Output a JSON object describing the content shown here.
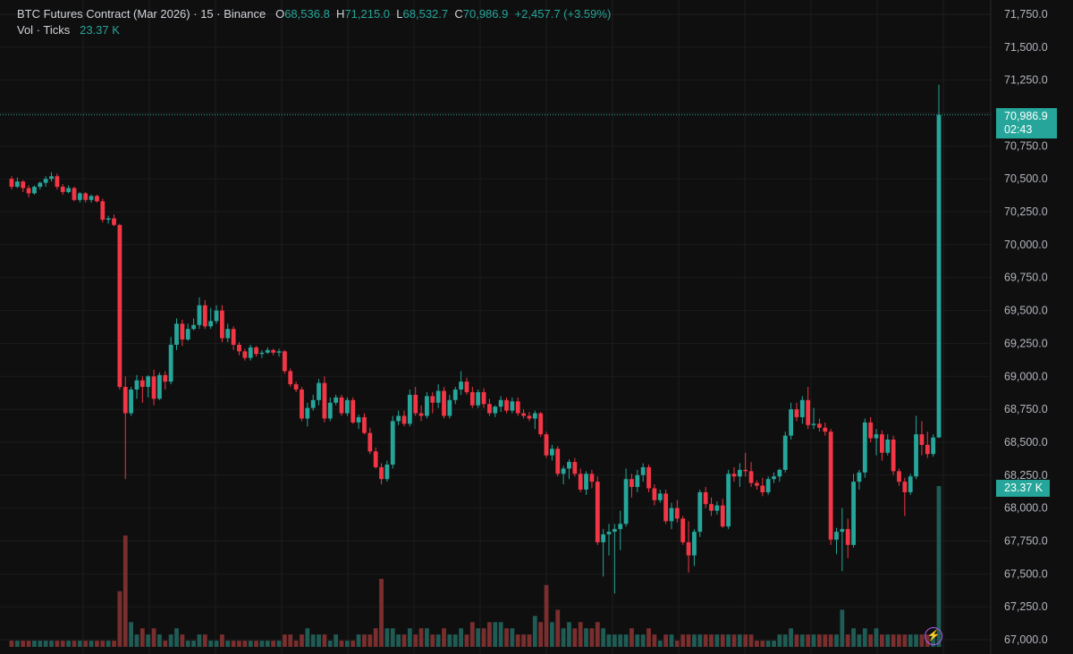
{
  "legend": {
    "symbol": "BTC Futures Contract (Mar 2026)",
    "interval": "15",
    "exchange": "Binance",
    "open_label": "O",
    "open": "68,536.8",
    "high_label": "H",
    "high": "71,215.0",
    "low_label": "L",
    "low": "68,532.7",
    "close_label": "C",
    "close": "70,986.9",
    "change": "+2,457.7 (+3.59%)",
    "vol_label": "Vol · Ticks",
    "vol_value": "23.37 K"
  },
  "price_tag": {
    "price": "70,986.9",
    "countdown": "02:43"
  },
  "volume_tag": {
    "value": "23.37 K"
  },
  "bolt_icon": "⚡",
  "colors": {
    "up": "#26a69a",
    "down": "#f23645",
    "up_vol": "#1f5c55",
    "down_vol": "#7a2e2e",
    "accent": "#b15cf2"
  },
  "chart_data": {
    "type": "candlestick",
    "y_axis_ticks": [
      "67,000.0",
      "67,250.0",
      "67,500.0",
      "67,750.0",
      "68,000.0",
      "68,250.0",
      "68,500.0",
      "68,750.0",
      "69,000.0",
      "69,250.0",
      "69,500.0",
      "69,750.0",
      "70,000.0",
      "70,250.0",
      "70,500.0",
      "70,750.0",
      "71,000.0",
      "71,250.0",
      "71,500.0",
      "71,750.0"
    ],
    "ylim": [
      67000,
      71750
    ],
    "last_price": 70986.9,
    "candles": [
      [
        70500,
        70520,
        70420,
        70440,
        1
      ],
      [
        70440,
        70510,
        70430,
        70480,
        1
      ],
      [
        70480,
        70490,
        70400,
        70430,
        1
      ],
      [
        70430,
        70450,
        70360,
        70390,
        1
      ],
      [
        70390,
        70450,
        70380,
        70440,
        1
      ],
      [
        70440,
        70480,
        70420,
        70470,
        1
      ],
      [
        70470,
        70520,
        70440,
        70500,
        1
      ],
      [
        70500,
        70550,
        70480,
        70520,
        1
      ],
      [
        70520,
        70540,
        70420,
        70440,
        1
      ],
      [
        70440,
        70460,
        70380,
        70400,
        1
      ],
      [
        70400,
        70450,
        70390,
        70430,
        1
      ],
      [
        70430,
        70440,
        70330,
        70340,
        1
      ],
      [
        70340,
        70400,
        70320,
        70390,
        1
      ],
      [
        70390,
        70400,
        70320,
        70340,
        1
      ],
      [
        70340,
        70380,
        70320,
        70370,
        1
      ],
      [
        70370,
        70380,
        70320,
        70330,
        1
      ],
      [
        70330,
        70350,
        70170,
        70190,
        1
      ],
      [
        70190,
        70220,
        70160,
        70200,
        1
      ],
      [
        70200,
        70230,
        70140,
        70150,
        1
      ],
      [
        70150,
        70160,
        68900,
        68920,
        9
      ],
      [
        68920,
        69000,
        68220,
        68720,
        18
      ],
      [
        68720,
        68920,
        68700,
        68900,
        4
      ],
      [
        68900,
        69010,
        68830,
        68970,
        2
      ],
      [
        68970,
        69000,
        68800,
        68920,
        3
      ],
      [
        68920,
        69010,
        68840,
        69000,
        2
      ],
      [
        69000,
        69050,
        68780,
        68830,
        3
      ],
      [
        68830,
        69030,
        68820,
        69010,
        2
      ],
      [
        69010,
        69040,
        68900,
        68960,
        1
      ],
      [
        68960,
        69300,
        68940,
        69240,
        2
      ],
      [
        69240,
        69440,
        69200,
        69400,
        3
      ],
      [
        69400,
        69430,
        69230,
        69280,
        2
      ],
      [
        69280,
        69400,
        69270,
        69360,
        1
      ],
      [
        69360,
        69440,
        69350,
        69390,
        1
      ],
      [
        69390,
        69600,
        69360,
        69540,
        2
      ],
      [
        69540,
        69580,
        69360,
        69380,
        2
      ],
      [
        69380,
        69520,
        69360,
        69420,
        1
      ],
      [
        69420,
        69540,
        69400,
        69500,
        1
      ],
      [
        69500,
        69540,
        69260,
        69290,
        2
      ],
      [
        69290,
        69400,
        69260,
        69360,
        1
      ],
      [
        69360,
        69380,
        69200,
        69240,
        1
      ],
      [
        69240,
        69260,
        69160,
        69190,
        1
      ],
      [
        69190,
        69210,
        69120,
        69140,
        1
      ],
      [
        69140,
        69240,
        69120,
        69220,
        1
      ],
      [
        69220,
        69230,
        69150,
        69170,
        1
      ],
      [
        69170,
        69200,
        69140,
        69180,
        1
      ],
      [
        69180,
        69220,
        69170,
        69200,
        1
      ],
      [
        69200,
        69210,
        69160,
        69180,
        1
      ],
      [
        69180,
        69210,
        69150,
        69190,
        1
      ],
      [
        69190,
        69200,
        69020,
        69040,
        2
      ],
      [
        69040,
        69060,
        68920,
        68940,
        2
      ],
      [
        68940,
        68960,
        68880,
        68900,
        1
      ],
      [
        68900,
        68920,
        68660,
        68680,
        2
      ],
      [
        68680,
        68800,
        68620,
        68760,
        3
      ],
      [
        68760,
        68860,
        68740,
        68820,
        2
      ],
      [
        68820,
        68980,
        68780,
        68950,
        2
      ],
      [
        68950,
        69000,
        68650,
        68680,
        2
      ],
      [
        68680,
        68840,
        68660,
        68800,
        1
      ],
      [
        68800,
        68860,
        68780,
        68840,
        2
      ],
      [
        68840,
        68860,
        68700,
        68720,
        1
      ],
      [
        68720,
        68840,
        68700,
        68820,
        1
      ],
      [
        68820,
        68840,
        68640,
        68650,
        1
      ],
      [
        68650,
        68710,
        68600,
        68690,
        2
      ],
      [
        68690,
        68720,
        68560,
        68570,
        2
      ],
      [
        68570,
        68610,
        68410,
        68430,
        2
      ],
      [
        68430,
        68460,
        68300,
        68310,
        3
      ],
      [
        68310,
        68340,
        68180,
        68220,
        11
      ],
      [
        68220,
        68360,
        68200,
        68330,
        3
      ],
      [
        68330,
        68700,
        68300,
        68660,
        3
      ],
      [
        68660,
        68740,
        68630,
        68700,
        2
      ],
      [
        68700,
        68740,
        68620,
        68640,
        2
      ],
      [
        68640,
        68900,
        68620,
        68860,
        3
      ],
      [
        68860,
        68920,
        68700,
        68720,
        2
      ],
      [
        68720,
        68780,
        68660,
        68700,
        3
      ],
      [
        68700,
        68880,
        68680,
        68850,
        3
      ],
      [
        68850,
        68880,
        68720,
        68800,
        2
      ],
      [
        68800,
        68940,
        68760,
        68890,
        2
      ],
      [
        68890,
        68920,
        68680,
        68700,
        3
      ],
      [
        68700,
        68860,
        68680,
        68820,
        2
      ],
      [
        68820,
        68920,
        68790,
        68900,
        2
      ],
      [
        68900,
        69040,
        68860,
        68960,
        3
      ],
      [
        68960,
        68990,
        68860,
        68880,
        2
      ],
      [
        68880,
        68920,
        68760,
        68780,
        4
      ],
      [
        68780,
        68900,
        68760,
        68880,
        3
      ],
      [
        68880,
        68910,
        68760,
        68790,
        3
      ],
      [
        68790,
        68830,
        68700,
        68720,
        4
      ],
      [
        68720,
        68780,
        68690,
        68770,
        4
      ],
      [
        68770,
        68850,
        68730,
        68820,
        4
      ],
      [
        68820,
        68840,
        68720,
        68740,
        3
      ],
      [
        68740,
        68840,
        68720,
        68810,
        3
      ],
      [
        68810,
        68840,
        68700,
        68720,
        2
      ],
      [
        68720,
        68750,
        68680,
        68700,
        2
      ],
      [
        68700,
        68730,
        68660,
        68680,
        2
      ],
      [
        68680,
        68740,
        68600,
        68720,
        5
      ],
      [
        68720,
        68730,
        68540,
        68560,
        4
      ],
      [
        68560,
        68580,
        68380,
        68400,
        10
      ],
      [
        68400,
        68480,
        68360,
        68450,
        4
      ],
      [
        68450,
        68470,
        68240,
        68260,
        6
      ],
      [
        68260,
        68320,
        68180,
        68300,
        3
      ],
      [
        68300,
        68370,
        68220,
        68350,
        4
      ],
      [
        68350,
        68380,
        68240,
        68260,
        3
      ],
      [
        68260,
        68300,
        68120,
        68140,
        4
      ],
      [
        68140,
        68280,
        68100,
        68260,
        3
      ],
      [
        68260,
        68290,
        68150,
        68200,
        3
      ],
      [
        68200,
        68240,
        67720,
        67740,
        4
      ],
      [
        67740,
        67840,
        67480,
        67800,
        3
      ],
      [
        67800,
        67880,
        67640,
        67820,
        2
      ],
      [
        67820,
        67880,
        67350,
        67840,
        2
      ],
      [
        67840,
        67980,
        67680,
        67880,
        2
      ],
      [
        67880,
        68300,
        67860,
        68220,
        2
      ],
      [
        68220,
        68260,
        68080,
        68160,
        3
      ],
      [
        68160,
        68290,
        68120,
        68250,
        2
      ],
      [
        68250,
        68340,
        68200,
        68310,
        2
      ],
      [
        68310,
        68330,
        68120,
        68150,
        3
      ],
      [
        68150,
        68180,
        68020,
        68060,
        2
      ],
      [
        68060,
        68140,
        68040,
        68110,
        1
      ],
      [
        68110,
        68140,
        67880,
        67900,
        2
      ],
      [
        67900,
        68040,
        67840,
        68000,
        2
      ],
      [
        68000,
        68060,
        67890,
        67920,
        1
      ],
      [
        67920,
        67940,
        67720,
        67740,
        2
      ],
      [
        67740,
        67900,
        67510,
        67640,
        2
      ],
      [
        67640,
        67840,
        67560,
        67820,
        2
      ],
      [
        67820,
        68140,
        67780,
        68120,
        2
      ],
      [
        68120,
        68160,
        68000,
        68030,
        2
      ],
      [
        68030,
        68080,
        67940,
        67980,
        2
      ],
      [
        67980,
        68050,
        67950,
        68020,
        2
      ],
      [
        68020,
        68070,
        67850,
        67860,
        2
      ],
      [
        67860,
        68290,
        67840,
        68260,
        2
      ],
      [
        68260,
        68310,
        68200,
        68240,
        2
      ],
      [
        68240,
        68340,
        68160,
        68290,
        2
      ],
      [
        68290,
        68420,
        68240,
        68280,
        2
      ],
      [
        68280,
        68350,
        68160,
        68190,
        2
      ],
      [
        68190,
        68210,
        68140,
        68170,
        1
      ],
      [
        68170,
        68230,
        68090,
        68120,
        1
      ],
      [
        68120,
        68240,
        68100,
        68220,
        1
      ],
      [
        68220,
        68270,
        68190,
        68240,
        1
      ],
      [
        68240,
        68300,
        68200,
        68290,
        2
      ],
      [
        68290,
        68580,
        68270,
        68550,
        2
      ],
      [
        68550,
        68800,
        68520,
        68750,
        3
      ],
      [
        68750,
        68800,
        68660,
        68690,
        2
      ],
      [
        68690,
        68850,
        68640,
        68820,
        2
      ],
      [
        68820,
        68920,
        68600,
        68630,
        2
      ],
      [
        68630,
        68760,
        68600,
        68640,
        2
      ],
      [
        68640,
        68680,
        68580,
        68610,
        2
      ],
      [
        68610,
        68650,
        68550,
        68580,
        2
      ],
      [
        68580,
        68600,
        67720,
        67760,
        2
      ],
      [
        67760,
        67850,
        67650,
        67820,
        2
      ],
      [
        67820,
        68000,
        67520,
        67840,
        6
      ],
      [
        67840,
        67920,
        67620,
        67720,
        2
      ],
      [
        67720,
        68260,
        67700,
        68200,
        3
      ],
      [
        68200,
        68290,
        68140,
        68270,
        2
      ],
      [
        68270,
        68680,
        68230,
        68650,
        3
      ],
      [
        68650,
        68690,
        68500,
        68530,
        2
      ],
      [
        68530,
        68600,
        68400,
        68560,
        3
      ],
      [
        68560,
        68590,
        68360,
        68420,
        2
      ],
      [
        68420,
        68560,
        68400,
        68520,
        2
      ],
      [
        68520,
        68550,
        68250,
        68280,
        2
      ],
      [
        68280,
        68300,
        68170,
        68200,
        2
      ],
      [
        68200,
        68230,
        67940,
        68120,
        2
      ],
      [
        68120,
        68260,
        68100,
        68240,
        2
      ],
      [
        68240,
        68700,
        68220,
        68560,
        2
      ],
      [
        68560,
        68660,
        68400,
        68480,
        2
      ],
      [
        68480,
        68580,
        68380,
        68410,
        2
      ],
      [
        68410,
        68560,
        68390,
        68536,
        2
      ],
      [
        68536,
        71215,
        68532,
        70986,
        26
      ]
    ]
  }
}
